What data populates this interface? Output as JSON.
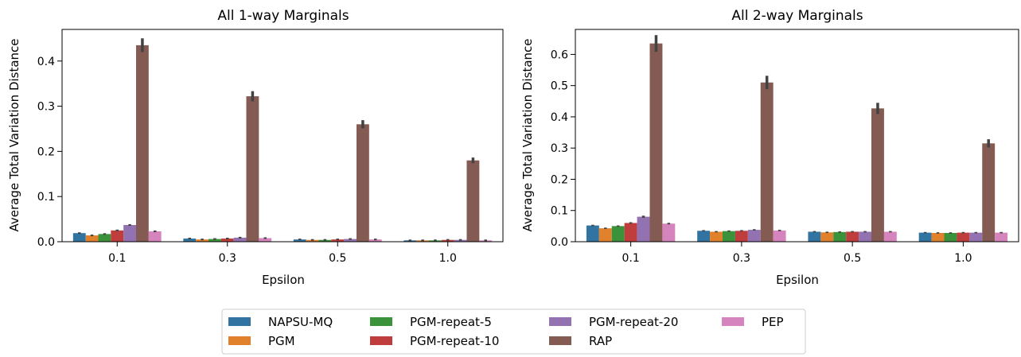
{
  "chart_data": [
    {
      "type": "bar",
      "title": "All 1-way Marginals",
      "xlabel": "Epsilon",
      "ylabel": "Average Total Variation Distance",
      "categories": [
        "0.1",
        "0.3",
        "0.5",
        "1.0"
      ],
      "ylim": [
        0,
        0.47
      ],
      "yticks": [
        "0.0",
        "0.1",
        "0.2",
        "0.3",
        "0.4"
      ],
      "error_bars": true,
      "series": [
        {
          "name": "NAPSU-MQ",
          "values": [
            0.019,
            0.007,
            0.005,
            0.003
          ]
        },
        {
          "name": "PGM",
          "values": [
            0.014,
            0.005,
            0.004,
            0.003
          ]
        },
        {
          "name": "PGM-repeat-5",
          "values": [
            0.017,
            0.006,
            0.004,
            0.003
          ]
        },
        {
          "name": "PGM-repeat-10",
          "values": [
            0.025,
            0.007,
            0.005,
            0.004
          ]
        },
        {
          "name": "PGM-repeat-20",
          "values": [
            0.037,
            0.009,
            0.006,
            0.004
          ]
        },
        {
          "name": "RAP",
          "values": [
            0.435,
            0.322,
            0.26,
            0.18
          ]
        },
        {
          "name": "PEP",
          "values": [
            0.023,
            0.008,
            0.005,
            0.003
          ]
        }
      ]
    },
    {
      "type": "bar",
      "title": "All 2-way Marginals",
      "xlabel": "Epsilon",
      "ylabel": "Average Total Variation Distance",
      "categories": [
        "0.1",
        "0.3",
        "0.5",
        "1.0"
      ],
      "ylim": [
        0,
        0.68
      ],
      "yticks": [
        "0.0",
        "0.1",
        "0.2",
        "0.3",
        "0.4",
        "0.5",
        "0.6"
      ],
      "error_bars": true,
      "series": [
        {
          "name": "NAPSU-MQ",
          "values": [
            0.052,
            0.035,
            0.032,
            0.029
          ]
        },
        {
          "name": "PGM",
          "values": [
            0.043,
            0.032,
            0.03,
            0.028
          ]
        },
        {
          "name": "PGM-repeat-5",
          "values": [
            0.05,
            0.034,
            0.031,
            0.028
          ]
        },
        {
          "name": "PGM-repeat-10",
          "values": [
            0.06,
            0.035,
            0.032,
            0.029
          ]
        },
        {
          "name": "PGM-repeat-20",
          "values": [
            0.08,
            0.038,
            0.032,
            0.029
          ]
        },
        {
          "name": "RAP",
          "values": [
            0.635,
            0.51,
            0.427,
            0.315
          ]
        },
        {
          "name": "PEP",
          "values": [
            0.058,
            0.036,
            0.032,
            0.029
          ]
        }
      ]
    }
  ],
  "legend": {
    "placement": "bottom-center",
    "items": [
      {
        "name": "NAPSU-MQ",
        "color": "#3274a1"
      },
      {
        "name": "PGM-repeat-5",
        "color": "#3a923a"
      },
      {
        "name": "PGM-repeat-20",
        "color": "#9372b2"
      },
      {
        "name": "PEP",
        "color": "#d684bd"
      },
      {
        "name": "PGM",
        "color": "#e1812c"
      },
      {
        "name": "PGM-repeat-10",
        "color": "#c03d3e"
      },
      {
        "name": "RAP",
        "color": "#845b53"
      }
    ]
  },
  "colors": {
    "NAPSU-MQ": "#3274a1",
    "PGM": "#e1812c",
    "PGM-repeat-5": "#3a923a",
    "PGM-repeat-10": "#c03d3e",
    "PGM-repeat-20": "#9372b2",
    "RAP": "#845b53",
    "PEP": "#d684bd",
    "errorbar": "#424242"
  }
}
